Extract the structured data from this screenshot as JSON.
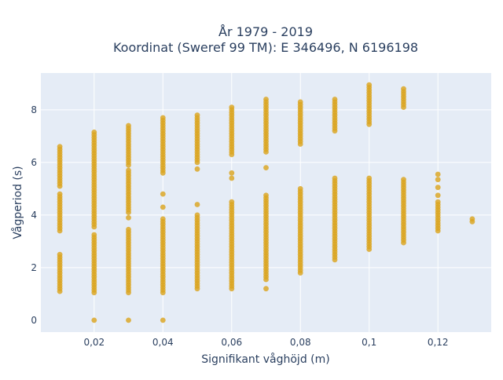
{
  "chart_data": {
    "type": "scatter",
    "title": "År 1979 - 2019",
    "subtitle": "Koordinat (Sweref 99 TM): E 346496, N 6196198",
    "xlabel": "Signifikant våghöjd (m)",
    "ylabel": "Vågperiod (s)",
    "xlim": [
      0.0045,
      0.1355
    ],
    "ylim": [
      -0.45,
      9.4
    ],
    "x_ticks": [
      {
        "value": 0.02,
        "label": "0,02"
      },
      {
        "value": 0.04,
        "label": "0,04"
      },
      {
        "value": 0.06,
        "label": "0,06"
      },
      {
        "value": 0.08,
        "label": "0,08"
      },
      {
        "value": 0.1,
        "label": "0,1"
      },
      {
        "value": 0.12,
        "label": "0,12"
      }
    ],
    "y_ticks": [
      {
        "value": 0,
        "label": "0"
      },
      {
        "value": 2,
        "label": "2"
      },
      {
        "value": 4,
        "label": "4"
      },
      {
        "value": 6,
        "label": "6"
      },
      {
        "value": 8,
        "label": "8"
      }
    ],
    "grid": true,
    "marker_color": "#DAA520",
    "background_color": "#E5ECF6",
    "grid_color": "#FFFFFF",
    "text_color": "#2a3f5f",
    "series": [
      {
        "columns": [
          {
            "x": 0.01,
            "ranges": [
              [
                1.1,
                2.5
              ],
              [
                3.4,
                4.8
              ],
              [
                5.1,
                6.65
              ]
            ]
          },
          {
            "x": 0.02,
            "ranges": [
              [
                1.05,
                3.3
              ],
              [
                3.55,
                7.15
              ]
            ],
            "points": [
              0
            ]
          },
          {
            "x": 0.03,
            "ranges": [
              [
                1.05,
                3.5
              ],
              [
                4.1,
                5.7
              ],
              [
                5.9,
                7.45
              ]
            ],
            "points": [
              0,
              3.9
            ]
          },
          {
            "x": 0.04,
            "ranges": [
              [
                1.05,
                3.9
              ],
              [
                5.6,
                7.75
              ]
            ],
            "points": [
              0,
              4.3,
              4.8
            ]
          },
          {
            "x": 0.05,
            "ranges": [
              [
                1.2,
                4.05
              ],
              [
                6.0,
                7.85
              ]
            ],
            "points": [
              4.4,
              5.75
            ]
          },
          {
            "x": 0.06,
            "ranges": [
              [
                1.2,
                4.55
              ],
              [
                6.3,
                8.15
              ]
            ],
            "points": [
              5.4,
              5.6
            ]
          },
          {
            "x": 0.07,
            "ranges": [
              [
                1.55,
                4.8
              ],
              [
                6.4,
                8.45
              ]
            ],
            "points": [
              1.2,
              5.8
            ]
          },
          {
            "x": 0.08,
            "ranges": [
              [
                1.8,
                5.0
              ],
              [
                6.7,
                8.3
              ]
            ]
          },
          {
            "x": 0.09,
            "ranges": [
              [
                2.3,
                5.45
              ],
              [
                7.2,
                8.45
              ]
            ]
          },
          {
            "x": 0.1,
            "ranges": [
              [
                2.7,
                5.45
              ],
              [
                7.45,
                8.95
              ]
            ]
          },
          {
            "x": 0.11,
            "ranges": [
              [
                2.95,
                5.35
              ],
              [
                8.1,
                8.85
              ]
            ]
          },
          {
            "x": 0.12,
            "ranges": [
              [
                3.4,
                4.5
              ]
            ],
            "points": [
              4.75,
              5.05,
              5.35,
              5.55
            ]
          },
          {
            "x": 0.13,
            "ranges": [
              [
                3.75,
                3.9
              ]
            ]
          }
        ]
      }
    ]
  }
}
